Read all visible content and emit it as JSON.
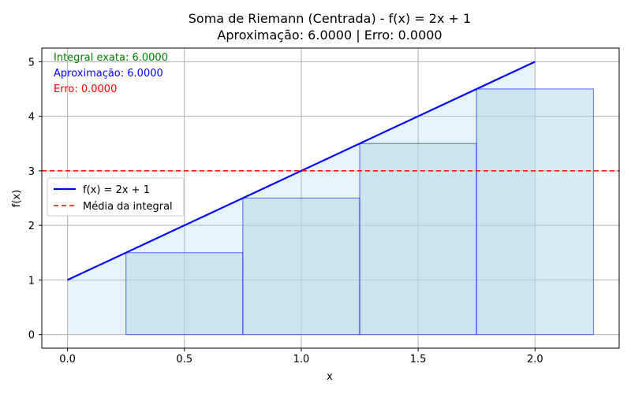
{
  "chart_data": {
    "type": "line",
    "title_line1": "Soma de Riemann (Centrada) - f(x) = 2x + 1",
    "title_line2": "Aproximação: 6.0000 | Erro: 0.0000",
    "xlabel": "x",
    "ylabel": "f(x)",
    "xlim": [
      -0.11,
      2.36
    ],
    "ylim": [
      -0.25,
      5.25
    ],
    "x_ticks": [
      0.0,
      0.5,
      1.0,
      1.5,
      2.0
    ],
    "x_tick_labels": [
      "0.0",
      "0.5",
      "1.0",
      "1.5",
      "2.0"
    ],
    "y_ticks": [
      0,
      1,
      2,
      3,
      4,
      5
    ],
    "y_tick_labels": [
      "0",
      "1",
      "2",
      "3",
      "4",
      "5"
    ],
    "grid": true,
    "series": [
      {
        "name": "f(x) = 2x + 1",
        "x": [
          0.0,
          2.0
        ],
        "y": [
          1.0,
          5.0
        ],
        "color": "#0000ff",
        "style": "solid"
      },
      {
        "name": "Média da integral",
        "y_constant": 3.0,
        "color": "#ff0000",
        "style": "dashed"
      }
    ],
    "area_under_curve": {
      "x": [
        0.0,
        2.0
      ],
      "y": [
        1.0,
        5.0
      ],
      "fill": "#add8e6"
    },
    "riemann_rectangles": [
      {
        "x_start": 0.25,
        "x_end": 0.75,
        "height": 1.5
      },
      {
        "x_start": 0.75,
        "x_end": 1.25,
        "height": 2.5
      },
      {
        "x_start": 1.25,
        "x_end": 1.75,
        "height": 3.5
      },
      {
        "x_start": 1.75,
        "x_end": 2.25,
        "height": 4.5
      }
    ],
    "annotations": [
      {
        "text": "Integral exata: 6.0000",
        "color": "#008000"
      },
      {
        "text": "Aproximação: 6.0000",
        "color": "#0000ff"
      },
      {
        "text": "Erro: 0.0000",
        "color": "#ff0000"
      }
    ],
    "legend_placement": "center-left"
  }
}
